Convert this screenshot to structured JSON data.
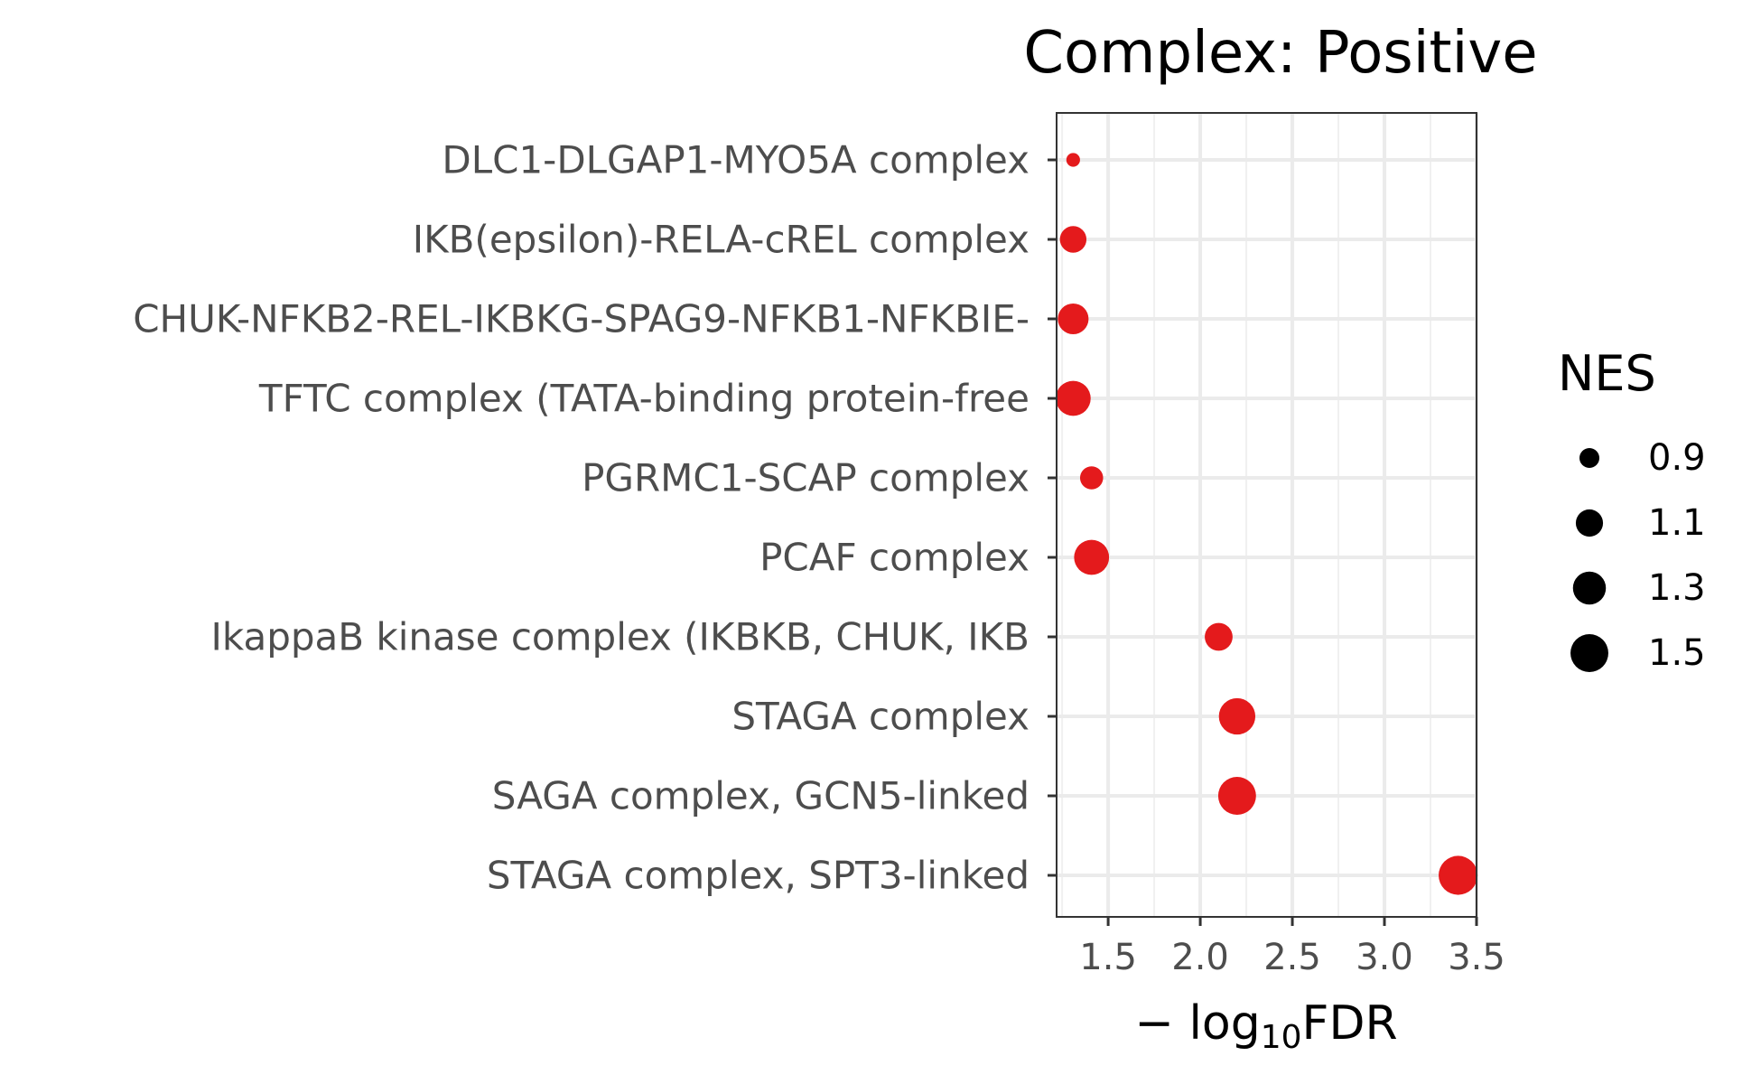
{
  "chart_data": {
    "type": "scatter",
    "title": "Complex: Positive",
    "xlabel": {
      "prefix": "− log",
      "sub": "10",
      "suffix": "FDR"
    },
    "ylabel": "",
    "xlim": [
      1.22,
      3.5
    ],
    "xticks": [
      1.5,
      2.0,
      2.5,
      3.0,
      3.5
    ],
    "xtick_labels": [
      "1.5",
      "2.0",
      "2.5",
      "3.0",
      "3.5"
    ],
    "grid": true,
    "point_color": "#e41a1c",
    "categories": [
      "DLC1-DLGAP1-MYO5A complex",
      "IKB(epsilon)-RELA-cREL complex",
      "CHUK-NFKB2-REL-IKBKG-SPAG9-NFKB1-NFKBIE-",
      "TFTC complex (TATA-binding protein-free ",
      "PGRMC1-SCAP complex",
      "PCAF complex",
      "IkappaB kinase complex (IKBKB, CHUK, IKB",
      "STAGA complex",
      "SAGA complex, GCN5-linked",
      "STAGA complex, SPT3-linked"
    ],
    "points": [
      {
        "y": "DLC1-DLGAP1-MYO5A complex",
        "x": 1.31,
        "nes": 0.78
      },
      {
        "y": "IKB(epsilon)-RELA-cREL complex",
        "x": 1.31,
        "nes": 1.08
      },
      {
        "y": "CHUK-NFKB2-REL-IKBKG-SPAG9-NFKB1-NFKBIE-",
        "x": 1.31,
        "nes": 1.22
      },
      {
        "y": "TFTC complex (TATA-binding protein-free ",
        "x": 1.31,
        "nes": 1.38
      },
      {
        "y": "PGRMC1-SCAP complex",
        "x": 1.41,
        "nes": 0.98
      },
      {
        "y": "PCAF complex",
        "x": 1.41,
        "nes": 1.38
      },
      {
        "y": "IkappaB kinase complex (IKBKB, CHUK, IKB",
        "x": 2.1,
        "nes": 1.12
      },
      {
        "y": "STAGA complex",
        "x": 2.2,
        "nes": 1.44
      },
      {
        "y": "SAGA complex, GCN5-linked",
        "x": 2.2,
        "nes": 1.5
      },
      {
        "y": "STAGA complex, SPT3-linked",
        "x": 3.4,
        "nes": 1.55
      }
    ],
    "legend": {
      "title": "NES",
      "placement": "right",
      "breaks": [
        0.9,
        1.1,
        1.3,
        1.5
      ],
      "labels": [
        "0.9",
        "1.1",
        "1.3",
        "1.5"
      ]
    }
  }
}
